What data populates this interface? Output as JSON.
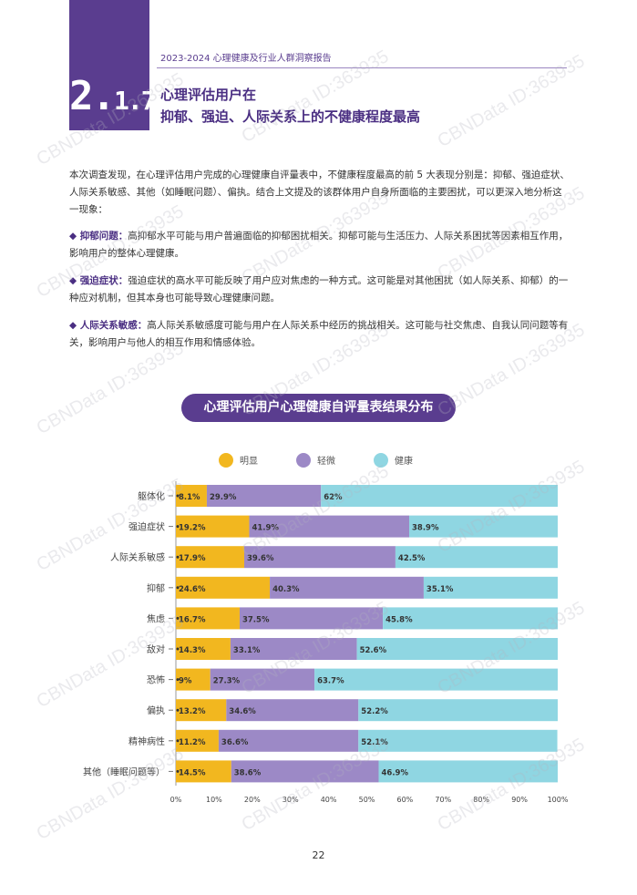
{
  "header": {
    "section_number_big": "2.",
    "section_number_small": "1.7",
    "report_title": "2023-2024 心理健康及行业人群洞察报告",
    "title_line1": "心理评估用户在",
    "title_line2": "抑郁、强迫、人际关系上的不健康程度最高"
  },
  "intro": "本次调查发现，在心理评估用户完成的心理健康自评量表中，不健康程度最高的前 5 大表现分别是：抑郁、强迫症状、人际关系敏感、其他（如睡眠问题）、偏执。结合上文提及的该群体用户自身所面临的主要困扰，可以更深入地分析这一现象：",
  "bullets": [
    {
      "label": "◆ 抑郁问题：",
      "text": "高抑郁水平可能与用户普遍面临的抑郁困扰相关。抑郁可能与生活压力、人际关系困扰等因素相互作用，影响用户的整体心理健康。"
    },
    {
      "label": "◆ 强迫症状：",
      "text": "强迫症状的高水平可能反映了用户应对焦虑的一种方式。这可能是对其他困扰（如人际关系、抑郁）的一种应对机制，但其本身也可能导致心理健康问题。"
    },
    {
      "label": "◆ 人际关系敏感：",
      "text": "高人际关系敏感度可能与用户在人际关系中经历的挑战相关。这可能与社交焦虑、自我认同问题等有关，影响用户与他人的相互作用和情感体验。"
    }
  ],
  "chart_title": "心理评估用户心理健康自评量表结果分布",
  "page_number": "22",
  "watermark": "CBNData ID:363935",
  "colors": {
    "accent": "#5a3d8f",
    "series": [
      "#f2b71f",
      "#9c89c6",
      "#8fd6e2"
    ]
  },
  "chart_data": {
    "type": "bar",
    "orientation": "horizontal",
    "stacked": true,
    "categories": [
      "躯体化",
      "强迫症状",
      "人际关系敏感",
      "抑郁",
      "焦虑",
      "敌对",
      "恐怖",
      "偏执",
      "精神病性",
      "其他（睡眠问题等）"
    ],
    "series": [
      {
        "name": "明显",
        "values": [
          8.1,
          19.2,
          17.9,
          24.6,
          16.7,
          14.3,
          9,
          13.2,
          11.2,
          14.5
        ],
        "labels": [
          "8.1%",
          "19.2%",
          "17.9%",
          "24.6%",
          "16.7%",
          "14.3%",
          "9%",
          "13.2%",
          "11.2%",
          "14.5%"
        ]
      },
      {
        "name": "轻微",
        "values": [
          29.9,
          41.9,
          39.6,
          40.3,
          37.5,
          33.1,
          27.3,
          34.6,
          36.6,
          38.6
        ],
        "labels": [
          "29.9%",
          "41.9%",
          "39.6%",
          "40.3%",
          "37.5%",
          "33.1%",
          "27.3%",
          "34.6%",
          "36.6%",
          "38.6%"
        ]
      },
      {
        "name": "健康",
        "values": [
          62,
          38.9,
          42.5,
          35.1,
          45.8,
          52.6,
          63.7,
          52.2,
          52.1,
          46.9
        ],
        "labels": [
          "62%",
          "38.9%",
          "42.5%",
          "35.1%",
          "45.8%",
          "52.6%",
          "63.7%",
          "52.2%",
          "52.1%",
          "46.9%"
        ]
      }
    ],
    "x_ticks": [
      "0%",
      "10%",
      "20%",
      "30%",
      "40%",
      "50%",
      "60%",
      "70%",
      "80%",
      "90%",
      "100%"
    ],
    "xlim": [
      0,
      100
    ],
    "legend_position": "top",
    "grid": false
  }
}
